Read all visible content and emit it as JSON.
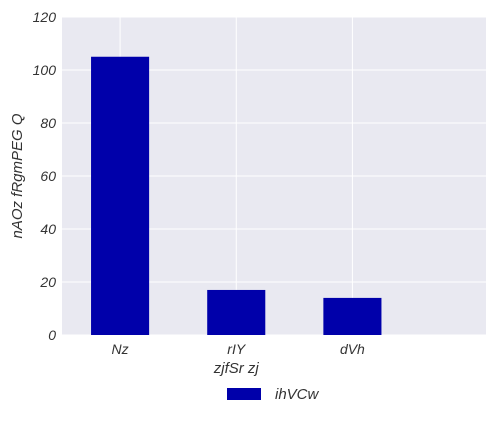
{
  "chart_data": {
    "type": "bar",
    "categories": [
      "Nz",
      "rIY",
      "dVh"
    ],
    "series": [
      {
        "name": "ihVCw",
        "values": [
          105,
          17,
          14
        ]
      }
    ],
    "xlabel": "zjfSr zj",
    "ylabel": "nAOz fRgmPEG Q",
    "ylim": [
      0,
      120
    ],
    "yticks": [
      0,
      20,
      40,
      60,
      80,
      100,
      120
    ],
    "grid": true,
    "legend_position": "bottom-center",
    "colors": {
      "bar": "#0000aa",
      "plot_background": "#e9e9f1",
      "grid": "#ffffff"
    }
  }
}
